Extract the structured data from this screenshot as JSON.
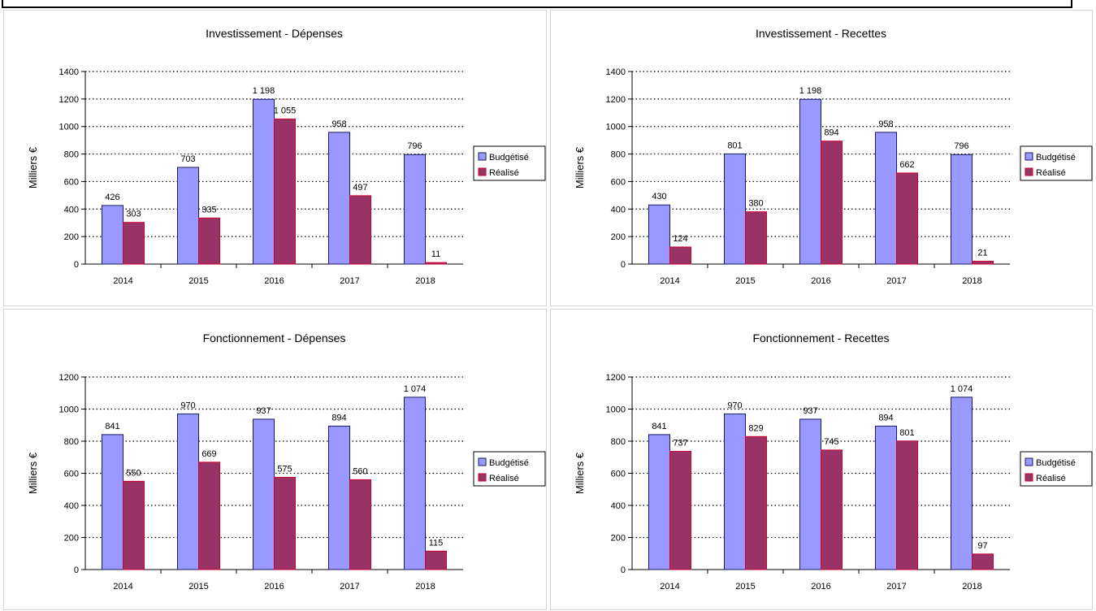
{
  "chart_data": [
    {
      "type": "bar",
      "title": "Investissement - Dépenses",
      "ylabel": "Milliers €",
      "xlabel": "",
      "ylim": [
        0,
        1400
      ],
      "yticks": [
        0,
        200,
        400,
        600,
        800,
        1000,
        1200,
        1400
      ],
      "grid": true,
      "legend": "right",
      "categories": [
        "2014",
        "2015",
        "2016",
        "2017",
        "2018"
      ],
      "series": [
        {
          "name": "Budgétisé",
          "values": [
            426,
            703,
            1198,
            958,
            796
          ],
          "labels": [
            "426",
            "703",
            "1 198",
            "958",
            "796"
          ],
          "color": "#9999ff"
        },
        {
          "name": "Réalisé",
          "values": [
            303,
            335,
            1055,
            497,
            11
          ],
          "labels": [
            "303",
            "335",
            "1 055",
            "497",
            "11"
          ],
          "color": "#993366"
        }
      ]
    },
    {
      "type": "bar",
      "title": "Investissement - Recettes",
      "ylabel": "Milliers €",
      "xlabel": "",
      "ylim": [
        0,
        1400
      ],
      "yticks": [
        0,
        200,
        400,
        600,
        800,
        1000,
        1200,
        1400
      ],
      "grid": true,
      "legend": "right",
      "categories": [
        "2014",
        "2015",
        "2016",
        "2017",
        "2018"
      ],
      "series": [
        {
          "name": "Budgétisé",
          "values": [
            430,
            801,
            1198,
            958,
            796
          ],
          "labels": [
            "430",
            "801",
            "1 198",
            "958",
            "796"
          ],
          "color": "#9999ff"
        },
        {
          "name": "Réalisé",
          "values": [
            124,
            380,
            894,
            662,
            21
          ],
          "labels": [
            "124",
            "380",
            "894",
            "662",
            "21"
          ],
          "color": "#993366"
        }
      ]
    },
    {
      "type": "bar",
      "title": "Fonctionnement - Dépenses",
      "ylabel": "Milliers €",
      "xlabel": "",
      "ylim": [
        0,
        1200
      ],
      "yticks": [
        0,
        200,
        400,
        600,
        800,
        1000,
        1200
      ],
      "grid": true,
      "legend": "right",
      "categories": [
        "2014",
        "2015",
        "2016",
        "2017",
        "2018"
      ],
      "series": [
        {
          "name": "Budgétisé",
          "values": [
            841,
            970,
            937,
            894,
            1074
          ],
          "labels": [
            "841",
            "970",
            "937",
            "894",
            "1 074"
          ],
          "color": "#9999ff"
        },
        {
          "name": "Réalisé",
          "values": [
            550,
            669,
            575,
            560,
            115
          ],
          "labels": [
            "550",
            "669",
            "575",
            "560",
            "115"
          ],
          "color": "#993366"
        }
      ]
    },
    {
      "type": "bar",
      "title": "Fonctionnement - Recettes",
      "ylabel": "Milliers €",
      "xlabel": "",
      "ylim": [
        0,
        1200
      ],
      "yticks": [
        0,
        200,
        400,
        600,
        800,
        1000,
        1200
      ],
      "grid": true,
      "legend": "right",
      "categories": [
        "2014",
        "2015",
        "2016",
        "2017",
        "2018"
      ],
      "series": [
        {
          "name": "Budgétisé",
          "values": [
            841,
            970,
            937,
            894,
            1074
          ],
          "labels": [
            "841",
            "970",
            "937",
            "894",
            "1 074"
          ],
          "color": "#9999ff"
        },
        {
          "name": "Réalisé",
          "values": [
            737,
            829,
            745,
            801,
            97
          ],
          "labels": [
            "737",
            "829",
            "745",
            "801",
            "97"
          ],
          "color": "#993366"
        }
      ]
    }
  ]
}
